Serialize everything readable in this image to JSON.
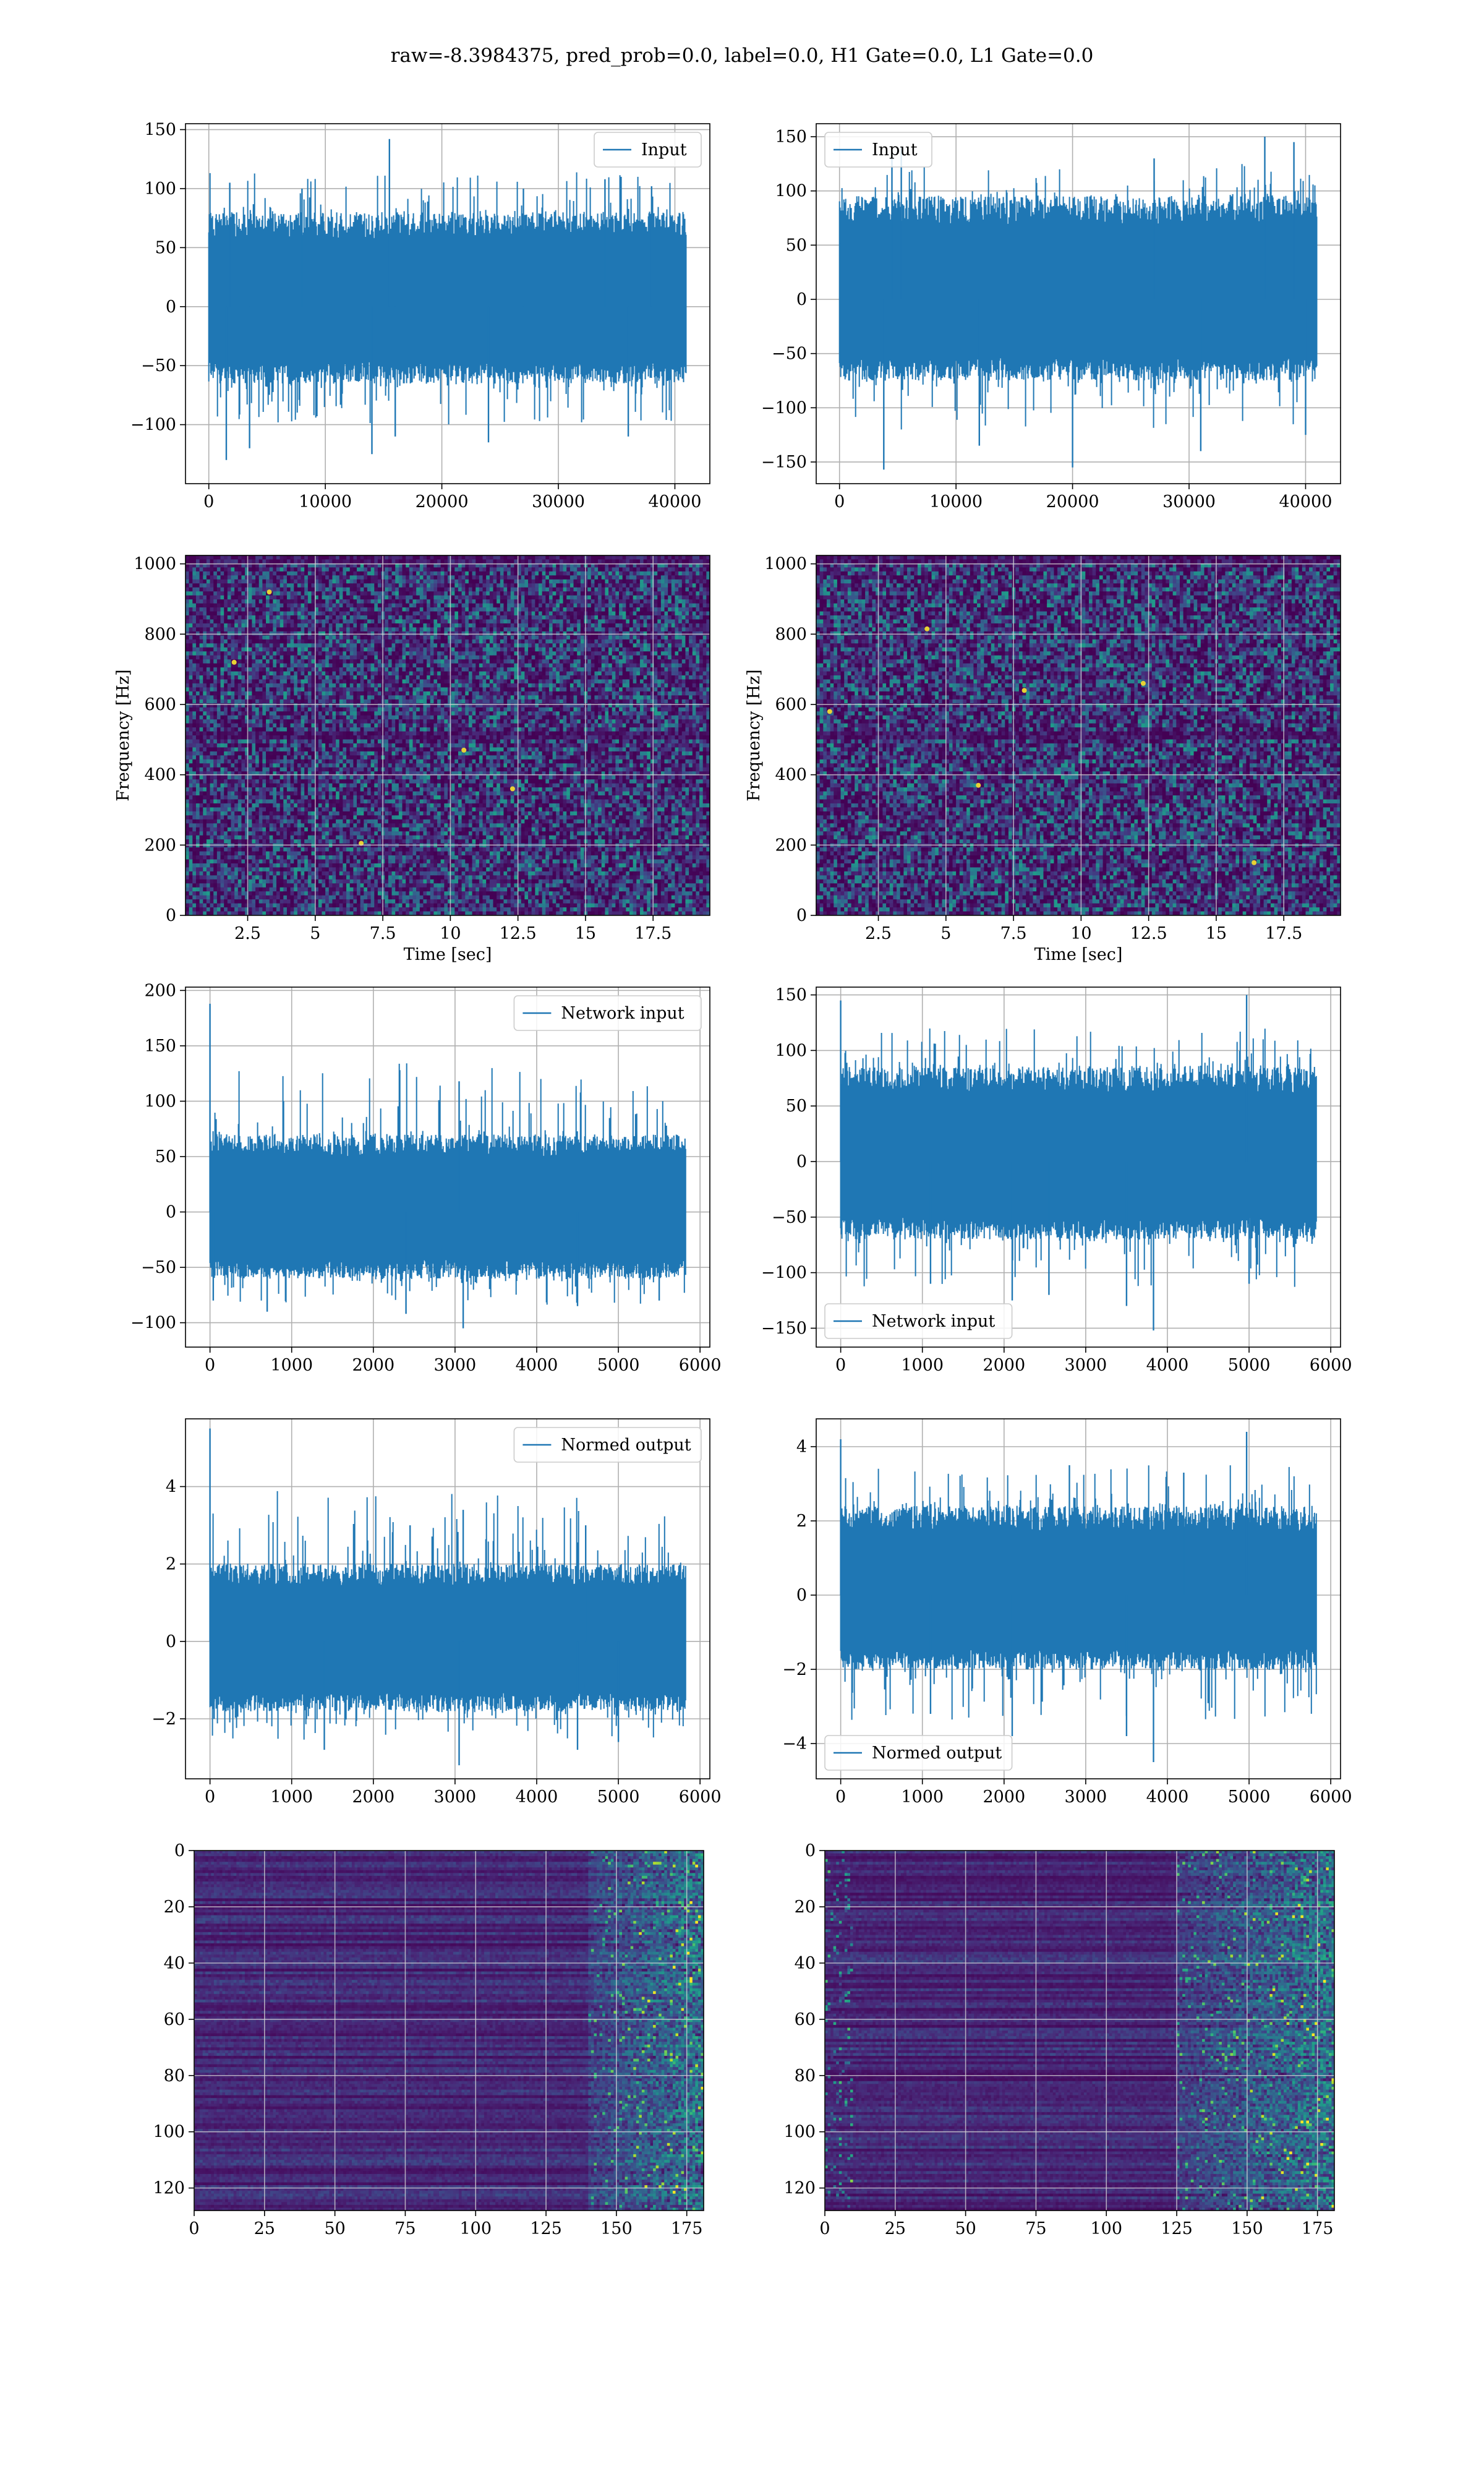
{
  "figure_title": "raw=-8.3984375, pred_prob=0.0, label=0.0, H1 Gate=0.0, L1 Gate=0.0",
  "colors": {
    "line": "#1f77b4",
    "grid": "#b0b0b0",
    "viridis": [
      "#440154",
      "#482878",
      "#3e4989",
      "#31688e",
      "#26828e",
      "#1f9e89",
      "#35b779",
      "#6ece58",
      "#b5de2b",
      "#fde725"
    ]
  },
  "chart_data": [
    {
      "type": "line",
      "id": "input-h1",
      "legend": [
        "Input"
      ],
      "legend_loc": "upper-right",
      "xlim": [
        -2000,
        43000
      ],
      "ylim": [
        -150,
        155
      ],
      "xticks": [
        0,
        10000,
        20000,
        30000,
        40000
      ],
      "yticks": [
        -100,
        -50,
        0,
        50,
        100,
        150
      ],
      "series": [
        {
          "name": "Input",
          "n": 40960,
          "center": 0,
          "body_amplitude": [
            -65,
            80
          ],
          "spike_range": [
            -130,
            142
          ],
          "spikes": [
            [
              1500,
              -130
            ],
            [
              1800,
              105
            ],
            [
              3500,
              -120
            ],
            [
              8000,
              100
            ],
            [
              14000,
              -125
            ],
            [
              15500,
              142
            ],
            [
              16000,
              -110
            ],
            [
              24000,
              -115
            ],
            [
              27000,
              100
            ],
            [
              34000,
              108
            ],
            [
              36000,
              -110
            ],
            [
              38000,
              102
            ]
          ]
        }
      ],
      "xlabel": "",
      "ylabel": ""
    },
    {
      "type": "line",
      "id": "input-l1",
      "legend": [
        "Input"
      ],
      "legend_loc": "upper-left",
      "xlim": [
        -2000,
        43000
      ],
      "ylim": [
        -170,
        162
      ],
      "xticks": [
        0,
        10000,
        20000,
        30000,
        40000
      ],
      "yticks": [
        -150,
        -100,
        -50,
        0,
        50,
        100,
        150
      ],
      "series": [
        {
          "name": "Input",
          "n": 40960,
          "center": 0,
          "body_amplitude": [
            -75,
            95
          ],
          "spike_range": [
            -157,
            150
          ],
          "spikes": [
            [
              3800,
              -157
            ],
            [
              5300,
              140
            ],
            [
              4500,
              135
            ],
            [
              20000,
              -155
            ],
            [
              27000,
              130
            ],
            [
              36500,
              150
            ],
            [
              39000,
              145
            ],
            [
              40000,
              -125
            ],
            [
              12000,
              -135
            ],
            [
              31000,
              -140
            ]
          ]
        }
      ],
      "xlabel": "",
      "ylabel": ""
    },
    {
      "type": "heatmap",
      "id": "spectrogram-h1",
      "xlim": [
        0.2,
        19.6
      ],
      "ylim": [
        0,
        1024
      ],
      "xticks": [
        2.5,
        5.0,
        7.5,
        10.0,
        12.5,
        15.0,
        17.5
      ],
      "yticks": [
        0,
        200,
        400,
        600,
        800,
        1000
      ],
      "xlabel": "Time [sec]",
      "ylabel": "Frequency [Hz]",
      "colormap": "viridis",
      "grid": true,
      "dark_bands_hz": [
        512,
        1020
      ],
      "hot_spots": [
        [
          3.3,
          920
        ],
        [
          6.7,
          205
        ],
        [
          12.3,
          360
        ],
        [
          2.0,
          720
        ],
        [
          10.5,
          470
        ]
      ]
    },
    {
      "type": "heatmap",
      "id": "spectrogram-l1",
      "xlim": [
        0.2,
        19.6
      ],
      "ylim": [
        0,
        1024
      ],
      "xticks": [
        2.5,
        5.0,
        7.5,
        10.0,
        12.5,
        15.0,
        17.5
      ],
      "yticks": [
        0,
        200,
        400,
        600,
        800,
        1000
      ],
      "xlabel": "Time [sec]",
      "ylabel": "Frequency [Hz]",
      "colormap": "viridis",
      "grid": true,
      "dark_bands_hz": [
        512,
        1020
      ],
      "hot_spots": [
        [
          0.7,
          580
        ],
        [
          4.3,
          815
        ],
        [
          6.2,
          370
        ],
        [
          7.9,
          640
        ],
        [
          12.3,
          660
        ],
        [
          16.4,
          150
        ]
      ]
    },
    {
      "type": "line",
      "id": "network-input-h1",
      "legend": [
        "Network input"
      ],
      "legend_loc": "upper-right",
      "xlim": [
        -300,
        6120
      ],
      "ylim": [
        -122,
        203
      ],
      "xticks": [
        0,
        1000,
        2000,
        3000,
        4000,
        5000,
        6000
      ],
      "yticks": [
        -100,
        -50,
        0,
        50,
        100,
        150,
        200
      ],
      "series": [
        {
          "name": "Network input",
          "n": 5824,
          "center": 0,
          "body_amplitude": [
            -60,
            70
          ],
          "spike_range": [
            -105,
            188
          ],
          "spikes": [
            [
              0,
              188
            ],
            [
              40,
              -80
            ],
            [
              3050,
              118
            ],
            [
              3100,
              -105
            ],
            [
              700,
              -90
            ],
            [
              2400,
              -92
            ],
            [
              4500,
              -85
            ],
            [
              5500,
              -80
            ],
            [
              900,
              100
            ]
          ]
        }
      ],
      "xlabel": "",
      "ylabel": ""
    },
    {
      "type": "line",
      "id": "network-input-l1",
      "legend": [
        "Network input"
      ],
      "legend_loc": "lower-left",
      "xlim": [
        -300,
        6120
      ],
      "ylim": [
        -167,
        157
      ],
      "xticks": [
        0,
        1000,
        2000,
        3000,
        4000,
        5000,
        6000
      ],
      "yticks": [
        -150,
        -100,
        -50,
        0,
        50,
        100,
        150
      ],
      "series": [
        {
          "name": "Network input",
          "n": 5824,
          "center": 0,
          "body_amplitude": [
            -70,
            85
          ],
          "spike_range": [
            -152,
            150
          ],
          "spikes": [
            [
              0,
              145
            ],
            [
              3830,
              -152
            ],
            [
              4970,
              150
            ],
            [
              2100,
              -125
            ],
            [
              3500,
              -130
            ],
            [
              2550,
              -120
            ],
            [
              1100,
              -110
            ],
            [
              5000,
              -110
            ]
          ]
        }
      ],
      "xlabel": "",
      "ylabel": ""
    },
    {
      "type": "line",
      "id": "normed-output-h1",
      "legend": [
        "Normed output"
      ],
      "legend_loc": "upper-right",
      "xlim": [
        -300,
        6120
      ],
      "ylim": [
        -3.55,
        5.75
      ],
      "xticks": [
        0,
        1000,
        2000,
        3000,
        4000,
        5000,
        6000
      ],
      "yticks": [
        -2,
        0,
        2,
        4
      ],
      "series": [
        {
          "name": "Normed output",
          "n": 5824,
          "center": 0,
          "body_amplitude": [
            -1.8,
            2.0
          ],
          "spike_range": [
            -3.2,
            5.5
          ],
          "spikes": [
            [
              0,
              5.5
            ],
            [
              50,
              -2.0
            ],
            [
              3050,
              -3.2
            ],
            [
              3100,
              3.4
            ],
            [
              2450,
              3.0
            ],
            [
              4600,
              3.0
            ],
            [
              1400,
              -2.8
            ],
            [
              4500,
              -2.8
            ],
            [
              5000,
              -2.6
            ]
          ]
        }
      ],
      "xlabel": "",
      "ylabel": ""
    },
    {
      "type": "line",
      "id": "normed-output-l1",
      "legend": [
        "Normed output"
      ],
      "legend_loc": "lower-left",
      "xlim": [
        -300,
        6120
      ],
      "ylim": [
        -4.95,
        4.75
      ],
      "xticks": [
        0,
        1000,
        2000,
        3000,
        4000,
        5000,
        6000
      ],
      "yticks": [
        -4,
        -2,
        0,
        2,
        4
      ],
      "series": [
        {
          "name": "Normed output",
          "n": 5824,
          "center": 0,
          "body_amplitude": [
            -2.0,
            2.4
          ],
          "spike_range": [
            -4.5,
            4.4
          ],
          "spikes": [
            [
              0,
              4.2
            ],
            [
              3830,
              -4.5
            ],
            [
              4970,
              4.4
            ],
            [
              2100,
              -3.8
            ],
            [
              3500,
              -3.8
            ],
            [
              1100,
              -3.2
            ],
            [
              2800,
              3.5
            ],
            [
              4200,
              3.3
            ]
          ]
        }
      ],
      "xlabel": "",
      "ylabel": ""
    },
    {
      "type": "heatmap",
      "id": "feature-map-h1",
      "xlim": [
        0,
        181
      ],
      "ylim": [
        128,
        0
      ],
      "xticks": [
        0,
        25,
        50,
        75,
        100,
        125,
        150,
        175
      ],
      "yticks": [
        0,
        20,
        40,
        60,
        80,
        100,
        120
      ],
      "colormap": "viridis",
      "grid": true,
      "rows": 128,
      "cols": 181,
      "bright_region_cols": [
        140,
        181
      ]
    },
    {
      "type": "heatmap",
      "id": "feature-map-l1",
      "xlim": [
        0,
        181
      ],
      "ylim": [
        128,
        0
      ],
      "xticks": [
        0,
        25,
        50,
        75,
        100,
        125,
        150,
        175
      ],
      "yticks": [
        0,
        20,
        40,
        60,
        80,
        100,
        120
      ],
      "colormap": "viridis",
      "grid": true,
      "rows": 128,
      "cols": 181,
      "bright_region_cols": [
        125,
        181
      ],
      "bright_left_cols": [
        0,
        10
      ]
    }
  ]
}
